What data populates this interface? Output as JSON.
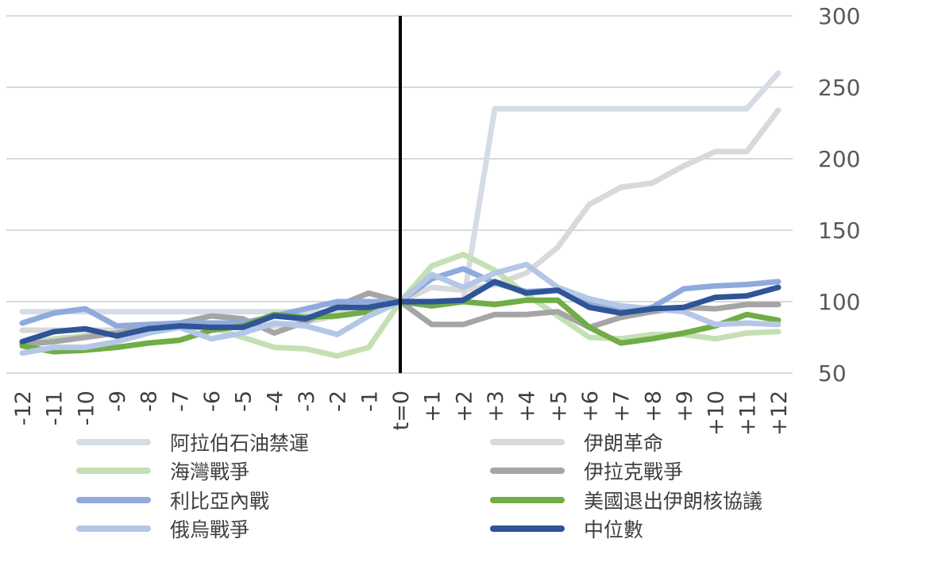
{
  "chart_data": {
    "type": "line",
    "categories": [
      "-12",
      "-11",
      "-10",
      "-9",
      "-8",
      "-7",
      "-6",
      "-5",
      "-4",
      "-3",
      "-2",
      "-1",
      "t=0",
      "+1",
      "+2",
      "+3",
      "+4",
      "+5",
      "+6",
      "+7",
      "+8",
      "+9",
      "+10",
      "+11",
      "+12"
    ],
    "yticks": [
      "50",
      "100",
      "150",
      "200",
      "250",
      "300"
    ],
    "ylim": [
      50,
      300
    ],
    "grid": true,
    "event_marker": "t=0",
    "legend_position": "bottom",
    "series": [
      {
        "name": "阿拉伯石油禁運",
        "color": "#d6dce5",
        "values": [
          93,
          93,
          93,
          93,
          93,
          93,
          93,
          93,
          93,
          93,
          93,
          93,
          100,
          100,
          100,
          235,
          235,
          235,
          235,
          235,
          235,
          235,
          235,
          235,
          260
        ]
      },
      {
        "name": "伊朗革命",
        "color": "#d9d9d9",
        "values": [
          80,
          80,
          80,
          80,
          80,
          82,
          85,
          85,
          83,
          86,
          90,
          95,
          100,
          110,
          108,
          112,
          120,
          138,
          168,
          180,
          183,
          195,
          205,
          205,
          234
        ]
      },
      {
        "name": "海灣戰爭",
        "color": "#c5e0b4",
        "values": [
          70,
          74,
          76,
          78,
          80,
          82,
          82,
          75,
          68,
          67,
          62,
          68,
          100,
          125,
          133,
          122,
          105,
          90,
          75,
          74,
          77,
          77,
          74,
          78,
          79
        ]
      },
      {
        "name": "伊拉克戰爭",
        "color": "#a5a5a5",
        "values": [
          70,
          72,
          75,
          78,
          82,
          85,
          90,
          88,
          78,
          86,
          97,
          106,
          100,
          84,
          84,
          91,
          91,
          93,
          82,
          89,
          93,
          96,
          95,
          98,
          98
        ]
      },
      {
        "name": "利比亞內戰",
        "color": "#8faadc",
        "values": [
          85,
          92,
          95,
          83,
          84,
          85,
          85,
          85,
          90,
          95,
          100,
          100,
          100,
          116,
          123,
          113,
          107,
          108,
          98,
          93,
          96,
          109,
          111,
          112,
          114
        ]
      },
      {
        "name": "美國退出伊朗核協議",
        "color": "#70ad47",
        "values": [
          69,
          65,
          66,
          68,
          71,
          73,
          80,
          83,
          91,
          89,
          90,
          93,
          100,
          97,
          100,
          98,
          101,
          101,
          82,
          71,
          74,
          78,
          83,
          91,
          87
        ]
      },
      {
        "name": "俄烏戰爭",
        "color": "#b4c7e7",
        "values": [
          64,
          68,
          68,
          72,
          78,
          82,
          74,
          78,
          85,
          83,
          77,
          90,
          100,
          119,
          110,
          120,
          126,
          110,
          102,
          97,
          95,
          93,
          84,
          85,
          84
        ]
      },
      {
        "name": "中位數",
        "color": "#2f5597",
        "values": [
          72,
          79,
          81,
          76,
          81,
          83,
          82,
          82,
          90,
          88,
          96,
          96,
          100,
          100,
          101,
          114,
          106,
          108,
          96,
          92,
          95,
          96,
          103,
          104,
          110
        ]
      }
    ]
  }
}
